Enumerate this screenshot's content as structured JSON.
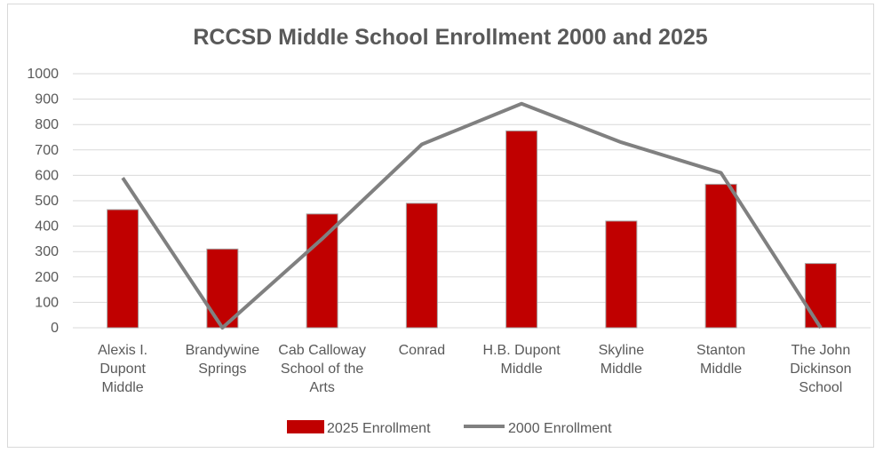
{
  "chart_data": {
    "type": "bar",
    "title": "RCCSD Middle School Enrollment 2000 and 2025",
    "categories": [
      [
        "Alexis I.",
        "Dupont",
        "Middle"
      ],
      [
        "Brandywine",
        "Springs"
      ],
      [
        "Cab Calloway",
        "School of the",
        "Arts"
      ],
      [
        "Conrad"
      ],
      [
        "H.B. Dupont",
        "Middle"
      ],
      [
        "Skyline",
        "Middle"
      ],
      [
        "Stanton",
        "Middle"
      ],
      [
        "The John",
        "Dickinson",
        "School"
      ]
    ],
    "ylim": [
      0,
      1000
    ],
    "yticks": [
      "0",
      "100",
      "200",
      "300",
      "400",
      "500",
      "600",
      "700",
      "800",
      "900",
      "1000"
    ],
    "grid": true,
    "legend_position": "bottom",
    "series": [
      {
        "name": "2025 Enrollment",
        "type": "bar",
        "color": "#c00000",
        "values": [
          465,
          310,
          448,
          490,
          775,
          420,
          565,
          253
        ]
      },
      {
        "name": "2000 Enrollment",
        "type": "line",
        "color": "#808080",
        "values": [
          590,
          0,
          350,
          722,
          882,
          730,
          610,
          0
        ]
      }
    ]
  }
}
